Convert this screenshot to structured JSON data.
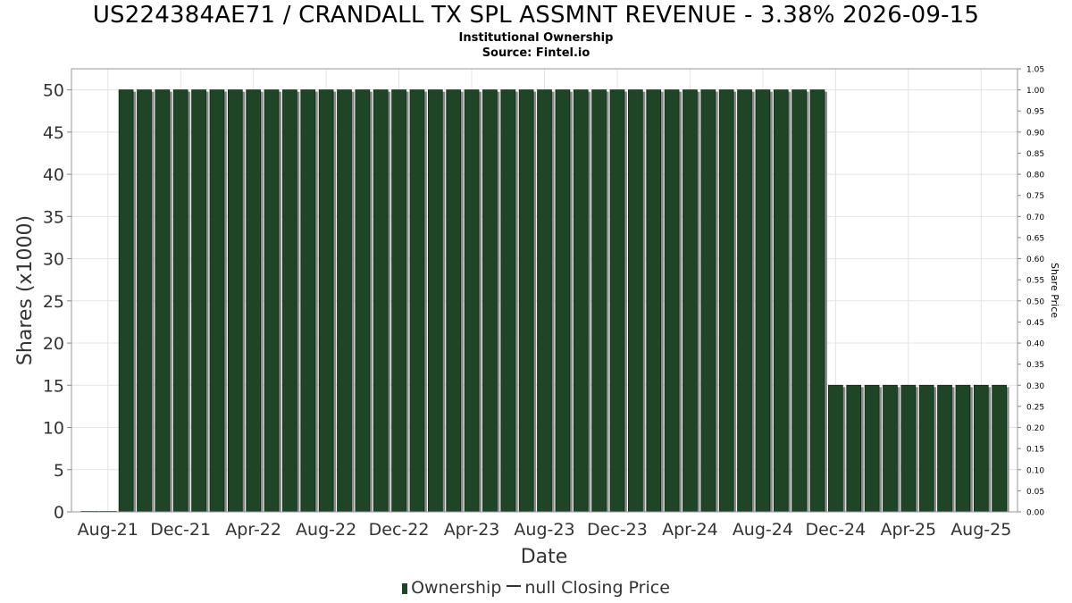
{
  "chart_data": {
    "type": "bar",
    "title": "US224384AE71 / CRANDALL TX SPL ASSMNT REVENUE - 3.38% 2026-09-15",
    "subtitle": [
      "Institutional Ownership",
      "Source: Fintel.io"
    ],
    "xlabel": "Date",
    "ylabel": "Shares (x1000)",
    "y2label": "Share Price",
    "ylim": [
      0,
      52.5
    ],
    "y2lim": [
      0,
      1.05
    ],
    "yticks": [
      0,
      5,
      10,
      15,
      20,
      25,
      30,
      35,
      40,
      45,
      50
    ],
    "y2ticks": [
      "0.00",
      "0.05",
      "0.10",
      "0.15",
      "0.20",
      "0.25",
      "0.30",
      "0.35",
      "0.40",
      "0.45",
      "0.50",
      "0.55",
      "0.60",
      "0.65",
      "0.70",
      "0.75",
      "0.80",
      "0.85",
      "0.90",
      "0.95",
      "1.00",
      "1.05"
    ],
    "xticks": [
      "Aug-21",
      "Dec-21",
      "Apr-22",
      "Aug-22",
      "Dec-22",
      "Apr-23",
      "Aug-23",
      "Dec-23",
      "Apr-24",
      "Aug-24",
      "Dec-24",
      "Apr-25",
      "Aug-25"
    ],
    "grid": true,
    "legend_position": "bottom",
    "series": [
      {
        "name": "Ownership",
        "color": "#1e4526",
        "values": [
          0,
          0,
          50,
          50,
          50,
          50,
          50,
          50,
          50,
          50,
          50,
          50,
          50,
          50,
          50,
          50,
          50,
          50,
          50,
          50,
          50,
          50,
          50,
          50,
          50,
          50,
          50,
          50,
          50,
          50,
          50,
          50,
          50,
          50,
          50,
          50,
          50,
          50,
          50,
          50,
          50,
          15,
          15,
          15,
          15,
          15,
          15,
          15,
          15,
          15,
          15
        ]
      }
    ],
    "legend": [
      {
        "label": "Ownership",
        "kind": "bar"
      },
      {
        "label": "null Closing Price",
        "kind": "line"
      }
    ]
  }
}
